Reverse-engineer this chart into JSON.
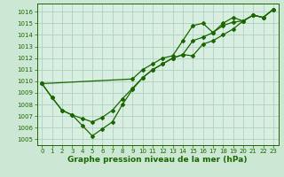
{
  "line1_x": [
    0,
    1,
    2,
    3,
    4,
    5,
    6,
    7,
    8,
    9,
    10,
    11,
    12,
    13,
    14,
    15,
    16,
    17,
    18,
    19,
    20,
    21,
    22,
    23
  ],
  "line1_y": [
    1009.8,
    1008.6,
    1007.5,
    1007.1,
    1006.8,
    1006.5,
    1006.9,
    1007.5,
    1008.5,
    1009.4,
    1010.3,
    1011.0,
    1011.5,
    1012.0,
    1012.3,
    1012.2,
    1013.2,
    1013.5,
    1014.0,
    1014.5,
    1015.2,
    1015.7,
    1015.5,
    1016.2
  ],
  "line2_x": [
    0,
    1,
    2,
    3,
    4,
    5,
    6,
    7,
    8,
    9,
    10,
    11,
    12,
    13,
    14,
    15,
    16,
    17,
    18,
    19,
    20,
    21,
    22,
    23
  ],
  "line2_y": [
    1009.8,
    1008.6,
    1007.5,
    1007.1,
    1006.2,
    1005.3,
    1005.9,
    1006.5,
    1008.0,
    1009.3,
    1010.3,
    1011.0,
    1011.5,
    1012.0,
    1012.3,
    1013.5,
    1013.8,
    1014.2,
    1014.8,
    1015.1,
    1015.2,
    1015.7,
    1015.5,
    1016.2
  ],
  "line3_x": [
    0,
    9,
    10,
    11,
    12,
    13,
    14,
    15,
    16,
    17,
    18,
    19,
    20,
    21,
    22,
    23
  ],
  "line3_y": [
    1009.8,
    1010.2,
    1011.0,
    1011.5,
    1012.0,
    1012.2,
    1013.5,
    1014.8,
    1015.0,
    1014.2,
    1015.0,
    1015.5,
    1015.2,
    1015.7,
    1015.5,
    1016.2
  ],
  "line_color": "#1a6600",
  "bg_color": "#cce8d4",
  "plot_bg_color": "#d8eee0",
  "grid_color": "#b0cfc0",
  "xlabel": "Graphe pression niveau de la mer (hPa)",
  "ylim": [
    1004.5,
    1016.7
  ],
  "xlim": [
    -0.5,
    23.5
  ],
  "yticks": [
    1005,
    1006,
    1007,
    1008,
    1009,
    1010,
    1011,
    1012,
    1013,
    1014,
    1015,
    1016
  ],
  "xticks": [
    0,
    1,
    2,
    3,
    4,
    5,
    6,
    7,
    8,
    9,
    10,
    11,
    12,
    13,
    14,
    15,
    16,
    17,
    18,
    19,
    20,
    21,
    22,
    23
  ],
  "tick_fontsize": 5.0,
  "xlabel_fontsize": 6.5,
  "marker": "D",
  "marker_size": 2.0,
  "linewidth": 0.9
}
